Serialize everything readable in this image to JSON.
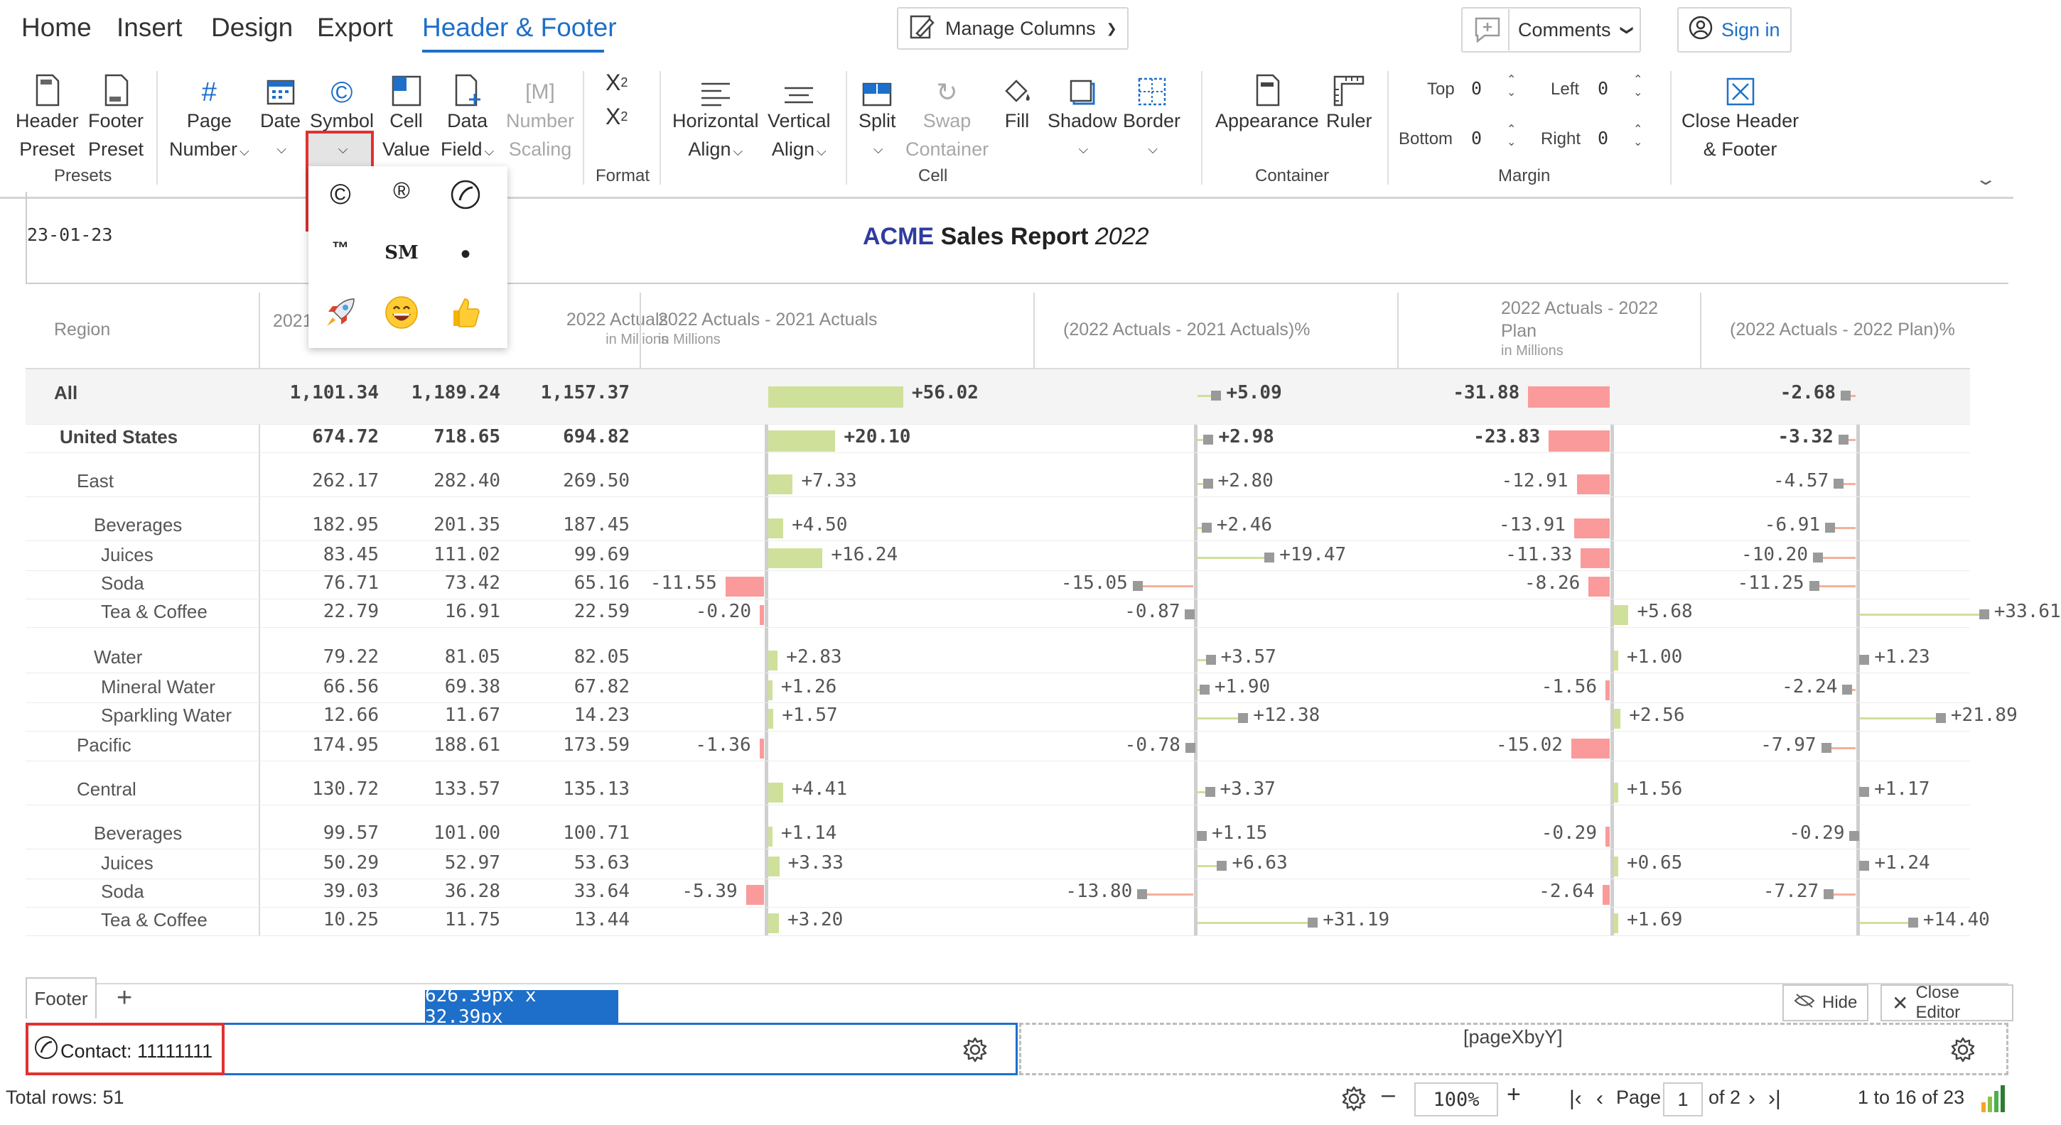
{
  "menu": {
    "items": [
      "Home",
      "Insert",
      "Design",
      "Export",
      "Header & Footer"
    ],
    "active": "Header & Footer",
    "manage_columns": "Manage Columns",
    "comments": "Comments",
    "sign_in": "Sign in"
  },
  "ribbon": {
    "header_preset": [
      "Header",
      "Preset"
    ],
    "footer_preset": [
      "Footer",
      "Preset"
    ],
    "presets_label": "Presets",
    "page_number": [
      "Page",
      "Number"
    ],
    "date": "Date",
    "symbol": "Symbol",
    "cell_value": [
      "Cell",
      "Value"
    ],
    "data_field": [
      "Data",
      "Field"
    ],
    "number_scaling": [
      "Number",
      "Scaling"
    ],
    "format_label": "Format",
    "horizontal_align": [
      "Horizontal",
      "Align"
    ],
    "vertical_align": [
      "Vertical",
      "Align"
    ],
    "split": "Split",
    "swap_container": [
      "Swap",
      "Container"
    ],
    "fill": "Fill",
    "shadow": "Shadow",
    "border": "Border",
    "cell_label": "Cell",
    "appearance": "Appearance",
    "ruler": "Ruler",
    "container_label": "Container",
    "margin": {
      "top_label": "Top",
      "top": "0",
      "left_label": "Left",
      "left": "0",
      "bottom_label": "Bottom",
      "bottom": "0",
      "right_label": "Right",
      "right": "0"
    },
    "margin_label": "Margin",
    "close_header_footer": [
      "Close Header",
      "& Footer"
    ]
  },
  "symbols": [
    "©",
    "®",
    "phone-icon",
    "™",
    "SM",
    "•",
    "rocket-emoji",
    "grin-emoji",
    "thumbs-up-emoji"
  ],
  "header": {
    "date": "23-01-23",
    "title_brand": "ACME",
    "title_text": "Sales Report",
    "title_year": "2022"
  },
  "table": {
    "columns": [
      {
        "label": "Region",
        "sub": ""
      },
      {
        "label": "2021",
        "sub": ""
      },
      {
        "label": "",
        "sub": ""
      },
      {
        "label": "2022 Actuals",
        "sub": "in Millions"
      },
      {
        "label": "2022 Actuals - 2021 Actuals",
        "sub": "in Millions"
      },
      {
        "label": "(2022 Actuals - 2021 Actuals)%",
        "sub": ""
      },
      {
        "label": "2022 Actuals - 2022 Plan",
        "sub": "in Millions"
      },
      {
        "label": "(2022 Actuals - 2022 Plan)%",
        "sub": ""
      }
    ],
    "rows": [
      {
        "label": "All",
        "indent": 0,
        "bold": true,
        "c1": "1,101.34",
        "c2": "1,189.24",
        "c3": "1,157.37",
        "d1": "+56.02",
        "d1v": 56.02,
        "d2": "+5.09",
        "d2v": 5.09,
        "d3": "-31.88",
        "d3v": -31.88,
        "d4": "-2.68",
        "d4v": -2.68
      },
      {
        "label": "United States",
        "indent": 1,
        "bold": true,
        "c1": "674.72",
        "c2": "718.65",
        "c3": "694.82",
        "d1": "+20.10",
        "d1v": 20.1,
        "d2": "+2.98",
        "d2v": 2.98,
        "d3": "-23.83",
        "d3v": -23.83,
        "d4": "-3.32",
        "d4v": -3.32
      },
      {
        "label": "East",
        "indent": 2,
        "bold": false,
        "c1": "262.17",
        "c2": "282.40",
        "c3": "269.50",
        "d1": "+7.33",
        "d1v": 7.33,
        "d2": "+2.80",
        "d2v": 2.8,
        "d3": "-12.91",
        "d3v": -12.91,
        "d4": "-4.57",
        "d4v": -4.57
      },
      {
        "label": "Beverages",
        "indent": 3,
        "bold": false,
        "c1": "182.95",
        "c2": "201.35",
        "c3": "187.45",
        "d1": "+4.50",
        "d1v": 4.5,
        "d2": "+2.46",
        "d2v": 2.46,
        "d3": "-13.91",
        "d3v": -13.91,
        "d4": "-6.91",
        "d4v": -6.91
      },
      {
        "label": "Juices",
        "indent": 4,
        "bold": false,
        "c1": "83.45",
        "c2": "111.02",
        "c3": "99.69",
        "d1": "+16.24",
        "d1v": 16.24,
        "d2": "+19.47",
        "d2v": 19.47,
        "d3": "-11.33",
        "d3v": -11.33,
        "d4": "-10.20",
        "d4v": -10.2
      },
      {
        "label": "Soda",
        "indent": 4,
        "bold": false,
        "c1": "76.71",
        "c2": "73.42",
        "c3": "65.16",
        "d1": "-11.55",
        "d1v": -11.55,
        "d2": "-15.05",
        "d2v": -15.05,
        "d3": "-8.26",
        "d3v": -8.26,
        "d4": "-11.25",
        "d4v": -11.25
      },
      {
        "label": "Tea & Coffee",
        "indent": 4,
        "bold": false,
        "c1": "22.79",
        "c2": "16.91",
        "c3": "22.59",
        "d1": "-0.20",
        "d1v": -0.2,
        "d2": "-0.87",
        "d2v": -0.87,
        "d3": "+5.68",
        "d3v": 5.68,
        "d4": "+33.61",
        "d4v": 33.61
      },
      {
        "label": "Water",
        "indent": 3,
        "bold": false,
        "c1": "79.22",
        "c2": "81.05",
        "c3": "82.05",
        "d1": "+2.83",
        "d1v": 2.83,
        "d2": "+3.57",
        "d2v": 3.57,
        "d3": "+1.00",
        "d3v": 1.0,
        "d4": "+1.23",
        "d4v": 1.23
      },
      {
        "label": "Mineral Water",
        "indent": 4,
        "bold": false,
        "c1": "66.56",
        "c2": "69.38",
        "c3": "67.82",
        "d1": "+1.26",
        "d1v": 1.26,
        "d2": "+1.90",
        "d2v": 1.9,
        "d3": "-1.56",
        "d3v": -1.56,
        "d4": "-2.24",
        "d4v": -2.24
      },
      {
        "label": "Sparkling Water",
        "indent": 4,
        "bold": false,
        "c1": "12.66",
        "c2": "11.67",
        "c3": "14.23",
        "d1": "+1.57",
        "d1v": 1.57,
        "d2": "+12.38",
        "d2v": 12.38,
        "d3": "+2.56",
        "d3v": 2.56,
        "d4": "+21.89",
        "d4v": 21.89
      },
      {
        "label": "Pacific",
        "indent": 2,
        "bold": false,
        "c1": "174.95",
        "c2": "188.61",
        "c3": "173.59",
        "d1": "-1.36",
        "d1v": -1.36,
        "d2": "-0.78",
        "d2v": -0.78,
        "d3": "-15.02",
        "d3v": -15.02,
        "d4": "-7.97",
        "d4v": -7.97
      },
      {
        "label": "Central",
        "indent": 2,
        "bold": false,
        "c1": "130.72",
        "c2": "133.57",
        "c3": "135.13",
        "d1": "+4.41",
        "d1v": 4.41,
        "d2": "+3.37",
        "d2v": 3.37,
        "d3": "+1.56",
        "d3v": 1.56,
        "d4": "+1.17",
        "d4v": 1.17
      },
      {
        "label": "Beverages",
        "indent": 3,
        "bold": false,
        "c1": "99.57",
        "c2": "101.00",
        "c3": "100.71",
        "d1": "+1.14",
        "d1v": 1.14,
        "d2": "+1.15",
        "d2v": 1.15,
        "d3": "-0.29",
        "d3v": -0.29,
        "d4": "-0.29",
        "d4v": -0.29
      },
      {
        "label": "Juices",
        "indent": 4,
        "bold": false,
        "c1": "50.29",
        "c2": "52.97",
        "c3": "53.63",
        "d1": "+3.33",
        "d1v": 3.33,
        "d2": "+6.63",
        "d2v": 6.63,
        "d3": "+0.65",
        "d3v": 0.65,
        "d4": "+1.24",
        "d4v": 1.24
      },
      {
        "label": "Soda",
        "indent": 4,
        "bold": false,
        "c1": "39.03",
        "c2": "36.28",
        "c3": "33.64",
        "d1": "-5.39",
        "d1v": -5.39,
        "d2": "-13.80",
        "d2v": -13.8,
        "d3": "-2.64",
        "d3v": -2.64,
        "d4": "-7.27",
        "d4v": -7.27
      },
      {
        "label": "Tea & Coffee",
        "indent": 4,
        "bold": false,
        "c1": "10.25",
        "c2": "11.75",
        "c3": "13.44",
        "d1": "+3.20",
        "d1v": 3.2,
        "d2": "+31.19",
        "d2v": 31.19,
        "d3": "+1.69",
        "d3v": 1.69,
        "d4": "+14.40",
        "d4v": 14.4
      }
    ]
  },
  "footer_editor": {
    "tab_label": "Footer",
    "add_tab": "+",
    "dimension_badge": "626.39px x 32.39px",
    "hide": "Hide",
    "close_editor": "Close Editor",
    "left_cell_text": "Contact: 11111111",
    "right_cell_text": "[pageXbyY]"
  },
  "status": {
    "total_rows": "Total rows: 51",
    "zoom": "100%",
    "page_label": "Page",
    "page_value": "1",
    "page_of": "of 2",
    "range": "1 to 16 of 23"
  },
  "colors": {
    "accent": "#1e6fc9",
    "positive_bar": "#cfe09a",
    "negative_bar": "#fa9a9a",
    "highlight": "#e03131",
    "marker": "#9a9a9a"
  }
}
